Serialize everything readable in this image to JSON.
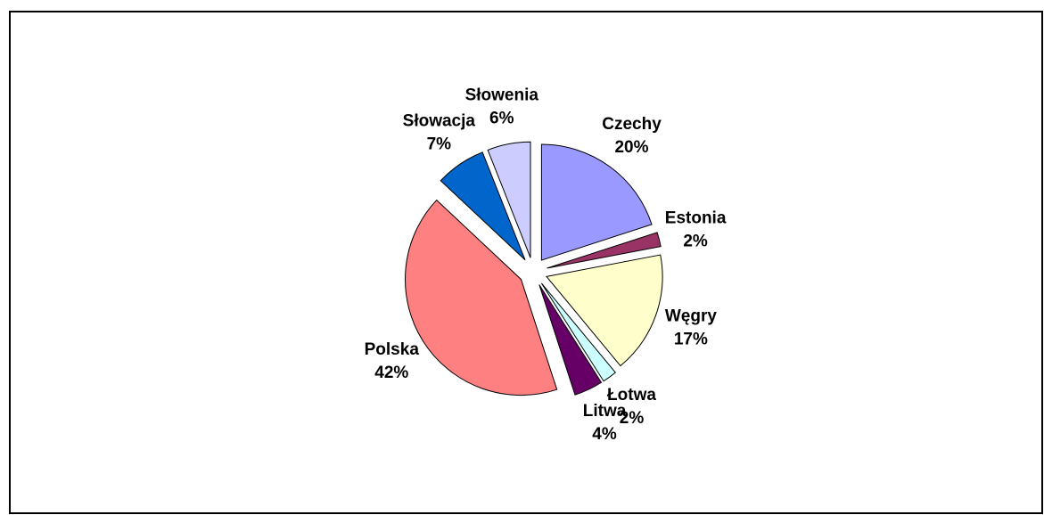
{
  "chart_data": {
    "type": "pie",
    "categories": [
      "Czechy",
      "Estonia",
      "Węgry",
      "Łotwa",
      "Litwa",
      "Polska",
      "Słowacja",
      "Słowenia"
    ],
    "values": [
      20,
      2,
      17,
      2,
      4,
      42,
      7,
      6
    ],
    "value_labels": [
      "20%",
      "2%",
      "17%",
      "2%",
      "4%",
      "42%",
      "7%",
      "6%"
    ],
    "colors": [
      "#9999ff",
      "#993366",
      "#ffffcc",
      "#ccffff",
      "#660066",
      "#ff8080",
      "#0066cc",
      "#ccccff"
    ]
  }
}
